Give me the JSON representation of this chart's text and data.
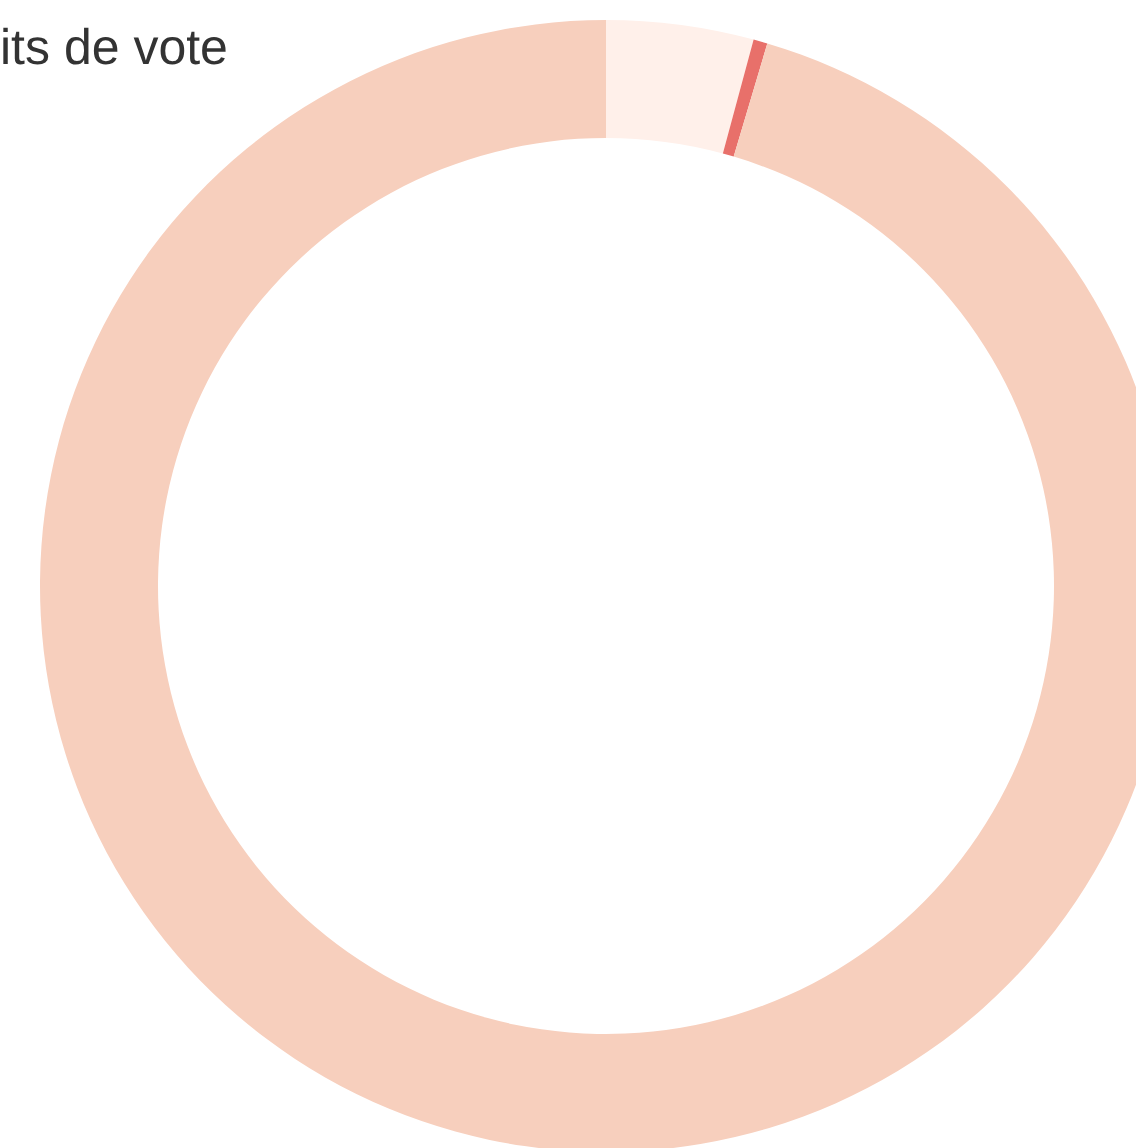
{
  "chart_data": {
    "type": "donut",
    "title": "its de vote",
    "categories": [
      null,
      null,
      null
    ],
    "values": [
      4.2,
      0.4,
      95.4
    ],
    "colors": [
      "#fff0ea",
      "#e8706a",
      "#f7cfbd"
    ]
  }
}
